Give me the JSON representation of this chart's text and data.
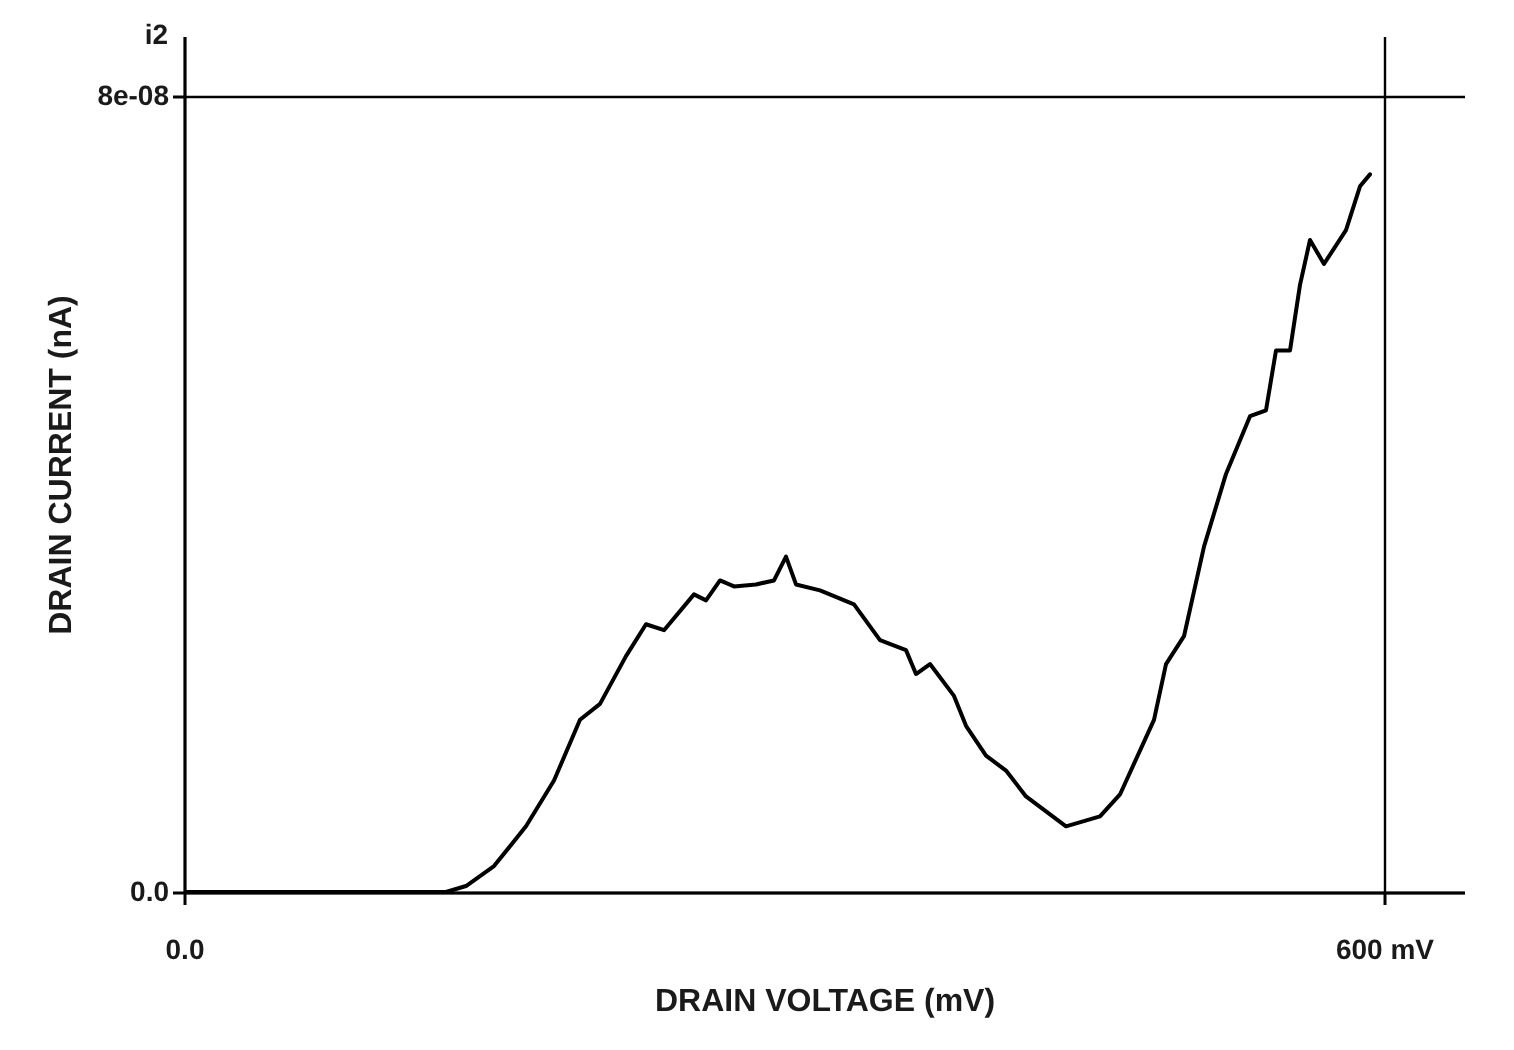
{
  "chart_data": {
    "type": "line",
    "xlabel": "DRAIN VOLTAGE (mV)",
    "ylabel": "DRAIN CURRENT (nA)",
    "annotations": [
      "i2"
    ],
    "xlim": [
      0,
      640
    ],
    "ylim": [
      0,
      8.6e-08
    ],
    "xticks": [
      {
        "value": 0,
        "label": "0.0"
      },
      {
        "value": 600,
        "label": "600 mV"
      }
    ],
    "yticks": [
      {
        "value": 0,
        "label": "0.0"
      },
      {
        "value": 8e-08,
        "label": "8e-08"
      }
    ],
    "grid": true,
    "series": [
      {
        "color": "#000000",
        "x": [
          0,
          131,
          141,
          155,
          171,
          185,
          198,
          208,
          221,
          231,
          240,
          255,
          261,
          268,
          275,
          286,
          295,
          301,
          306,
          318,
          335,
          348,
          361,
          366,
          373,
          385,
          391,
          401,
          411,
          421,
          441,
          458,
          468,
          485,
          491,
          500,
          510,
          521,
          533,
          541,
          546,
          553,
          558,
          563,
          570,
          581,
          588,
          593
        ],
        "values": [
          0,
          0,
          6e-10,
          2.6e-09,
          6.6e-09,
          1.12e-08,
          1.73e-08,
          1.89e-08,
          2.37e-08,
          2.69e-08,
          2.63e-08,
          2.99e-08,
          2.93e-08,
          3.13e-08,
          3.07e-08,
          3.09e-08,
          3.13e-08,
          3.37e-08,
          3.09e-08,
          3.03e-08,
          2.89e-08,
          2.53e-08,
          2.43e-08,
          2.19e-08,
          2.29e-08,
          1.97e-08,
          1.67e-08,
          1.37e-08,
          1.22e-08,
          9.6e-09,
          6.6e-09,
          7.6e-09,
          9.8e-09,
          1.73e-08,
          2.29e-08,
          2.57e-08,
          3.47e-08,
          4.2e-08,
          4.78e-08,
          4.84e-08,
          5.44e-08,
          5.44e-08,
          6.1e-08,
          6.55e-08,
          6.31e-08,
          6.65e-08,
          7.09e-08,
          7.21e-08
        ]
      }
    ]
  }
}
